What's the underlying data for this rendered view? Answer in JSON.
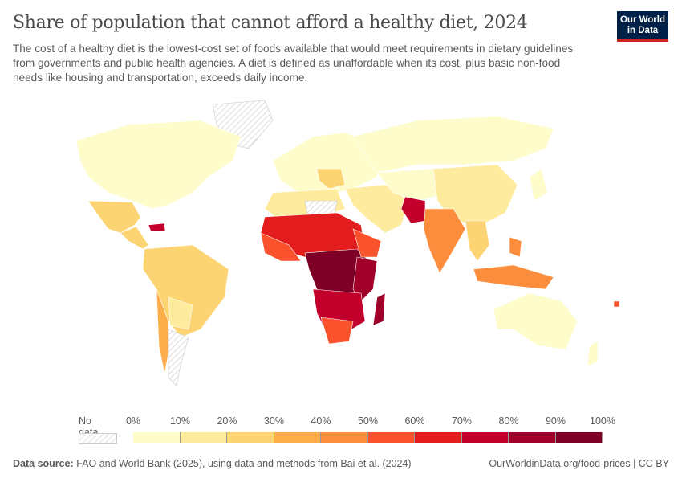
{
  "header": {
    "title": "Share of population that cannot afford a healthy diet, 2024",
    "subtitle": "The cost of a healthy diet is the lowest-cost set of foods available that would meet requirements in dietary guidelines from governments and public health agencies. A diet is defined as unaffordable when its cost, plus basic non-food needs like housing and transportation, exceeds daily income.",
    "logo_line1": "Our World",
    "logo_line2": "in Data"
  },
  "legend": {
    "no_data_label": "No data",
    "ticks": [
      "0%",
      "10%",
      "20%",
      "30%",
      "40%",
      "50%",
      "60%",
      "70%",
      "80%",
      "90%",
      "100%"
    ],
    "colors": [
      "#fefccb",
      "#feeb9e",
      "#fdd474",
      "#fdae4b",
      "#fc8d3d",
      "#f9522d",
      "#e31d1d",
      "#c2002b",
      "#a00029",
      "#7f0026"
    ],
    "no_data_color": "#e8e8e8"
  },
  "footer": {
    "source_label": "Data source:",
    "source_text": "FAO and World Bank (2025), using data and methods from Bai et al. (2024)",
    "url_license": "OurWorldinData.org/food-prices | CC BY"
  }
}
